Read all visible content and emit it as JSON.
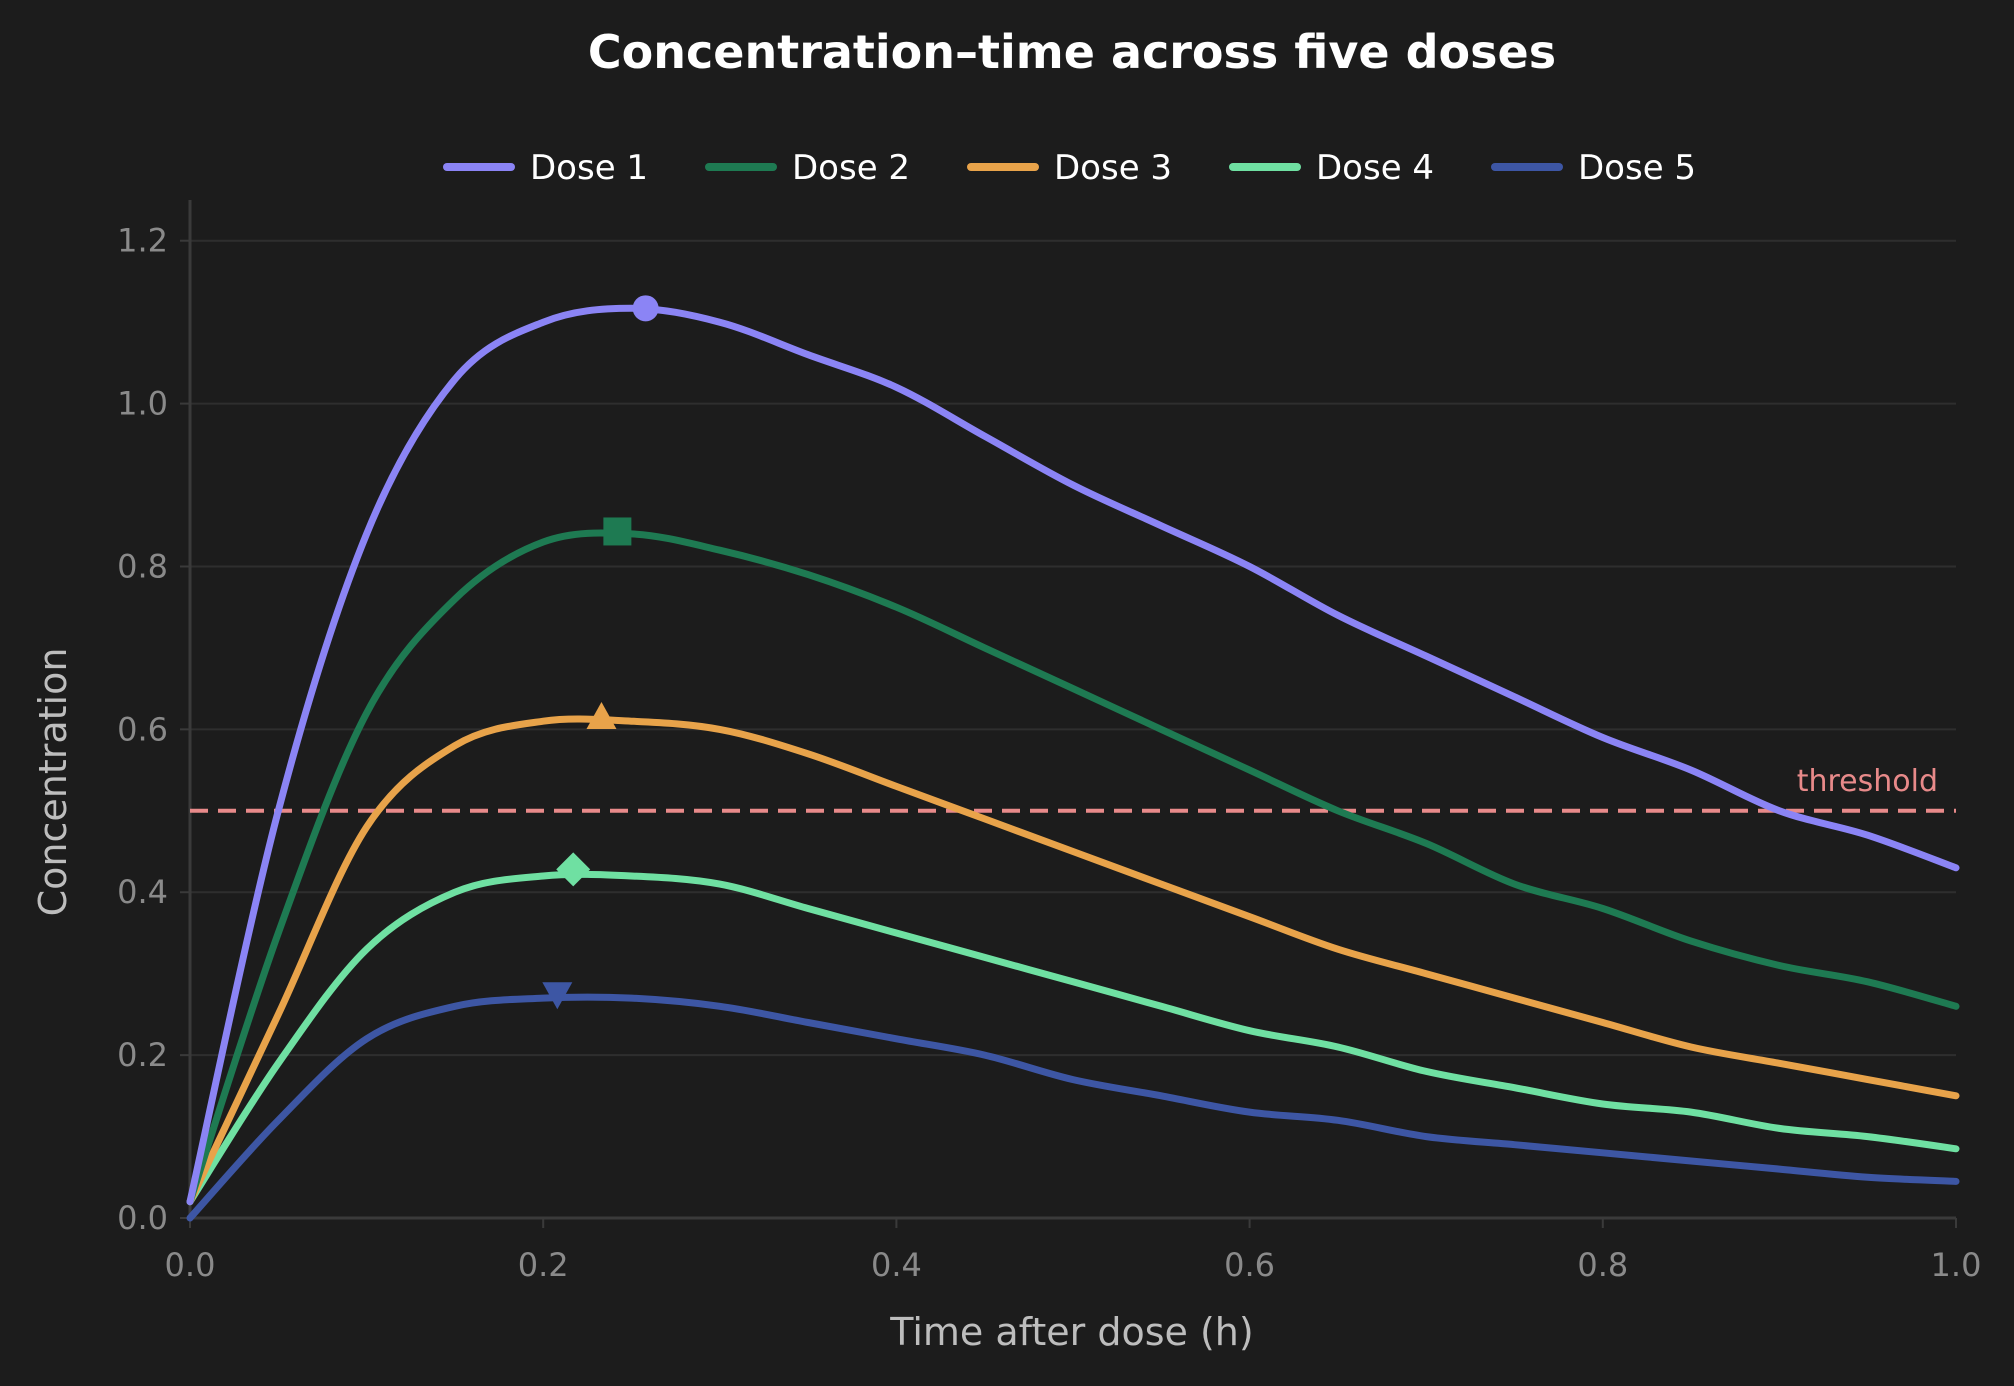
{
  "chart_data": {
    "type": "line",
    "title": "Concentration–time across five doses",
    "xlabel": "Time after dose (h)",
    "ylabel": "Concentration",
    "xlim": [
      0.0,
      1.0
    ],
    "ylim": [
      0.0,
      1.25
    ],
    "x_ticks": [
      "0.0",
      "0.2",
      "0.4",
      "0.6",
      "0.8",
      "1.0"
    ],
    "y_ticks": [
      "0.0",
      "0.2",
      "0.4",
      "0.6",
      "0.8",
      "1.0",
      "1.2"
    ],
    "grid": "horizontal",
    "legend_position": "top-center",
    "x": [
      0.0,
      0.05,
      0.1,
      0.15,
      0.2,
      0.25,
      0.3,
      0.35,
      0.4,
      0.45,
      0.5,
      0.55,
      0.6,
      0.65,
      0.7,
      0.75,
      0.8,
      0.85,
      0.9,
      0.95,
      1.0
    ],
    "series": [
      {
        "name": "Dose 1",
        "color": "#8b84f5",
        "marker": "circle",
        "peak": [
          0.258,
          1.117
        ],
        "values": [
          0.02,
          0.5,
          0.84,
          1.03,
          1.1,
          1.117,
          1.1,
          1.06,
          1.02,
          0.96,
          0.9,
          0.85,
          0.8,
          0.74,
          0.69,
          0.64,
          0.59,
          0.55,
          0.5,
          0.47,
          0.43
        ]
      },
      {
        "name": "Dose 2",
        "color": "#1e7a52",
        "marker": "square",
        "peak": [
          0.242,
          0.843
        ],
        "values": [
          0.02,
          0.35,
          0.62,
          0.76,
          0.83,
          0.84,
          0.82,
          0.79,
          0.75,
          0.7,
          0.65,
          0.6,
          0.55,
          0.5,
          0.46,
          0.41,
          0.38,
          0.34,
          0.31,
          0.29,
          0.26
        ]
      },
      {
        "name": "Dose 3",
        "color": "#e8a34a",
        "marker": "triangle-up",
        "peak": [
          0.233,
          0.614
        ],
        "values": [
          0.02,
          0.25,
          0.48,
          0.58,
          0.61,
          0.61,
          0.6,
          0.57,
          0.53,
          0.49,
          0.45,
          0.41,
          0.37,
          0.33,
          0.3,
          0.27,
          0.24,
          0.21,
          0.19,
          0.17,
          0.15
        ]
      },
      {
        "name": "Dose 4",
        "color": "#6fe0a2",
        "marker": "diamond",
        "peak": [
          0.217,
          0.428
        ],
        "values": [
          0.02,
          0.19,
          0.33,
          0.4,
          0.42,
          0.42,
          0.41,
          0.38,
          0.35,
          0.32,
          0.29,
          0.26,
          0.23,
          0.21,
          0.18,
          0.16,
          0.14,
          0.13,
          0.11,
          0.1,
          0.085
        ]
      },
      {
        "name": "Dose 5",
        "color": "#3d56a4",
        "marker": "triangle-down",
        "peak": [
          0.208,
          0.276
        ],
        "values": [
          0.0,
          0.12,
          0.22,
          0.26,
          0.27,
          0.27,
          0.26,
          0.24,
          0.22,
          0.2,
          0.17,
          0.15,
          0.13,
          0.12,
          0.1,
          0.09,
          0.08,
          0.07,
          0.06,
          0.05,
          0.045
        ]
      }
    ],
    "reference_line": {
      "label": "threshold",
      "y": 0.5,
      "color": "#e88a8a",
      "style": "dashed"
    }
  }
}
